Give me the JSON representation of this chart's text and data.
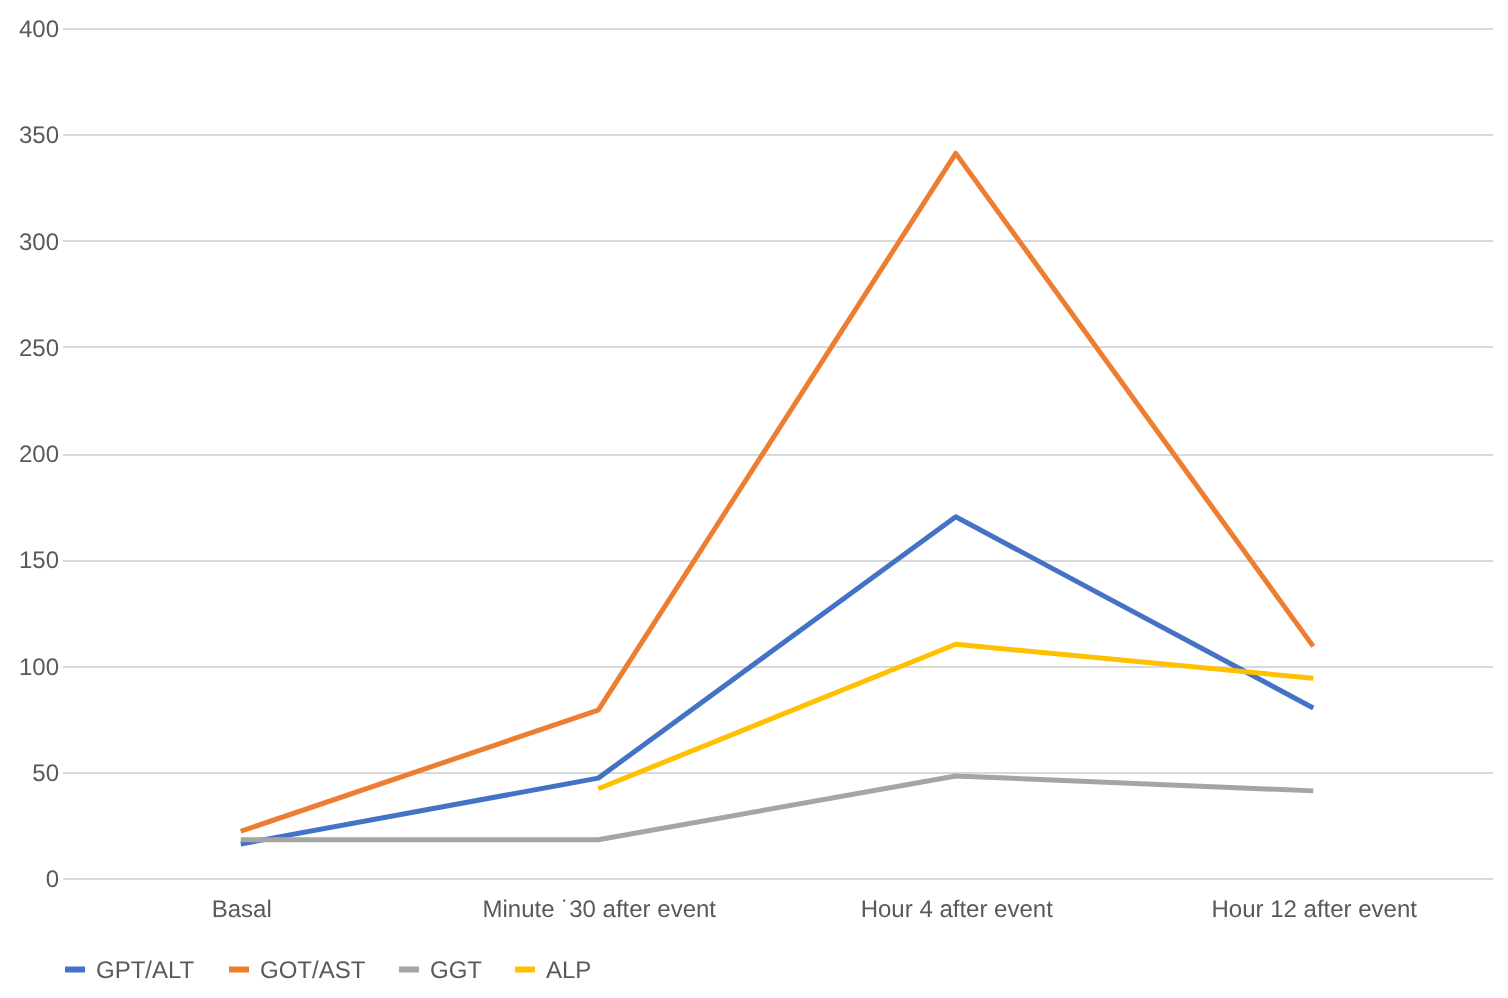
{
  "chart_data": {
    "type": "line",
    "categories": [
      "Basal",
      "Minute ˙30 after event",
      "Hour 4 after event",
      "Hour 12 after event"
    ],
    "series": [
      {
        "name": "GPT/ALT",
        "color": "#4472c4",
        "values": [
          16,
          47,
          170,
          80
        ]
      },
      {
        "name": "GOT/AST",
        "color": "#ed7d31",
        "values": [
          22,
          79,
          341,
          109
        ]
      },
      {
        "name": "GGT",
        "color": "#a5a5a5",
        "values": [
          18,
          18,
          48,
          41
        ]
      },
      {
        "name": "ALP",
        "color": "#ffc000",
        "values": [
          null,
          42,
          110,
          94
        ]
      }
    ],
    "ylim": [
      0,
      400
    ],
    "yticks": [
      0,
      50,
      100,
      150,
      200,
      250,
      300,
      350,
      400
    ],
    "grid": "y",
    "legend": "bottom",
    "marker": "none",
    "line_style": "solid"
  }
}
